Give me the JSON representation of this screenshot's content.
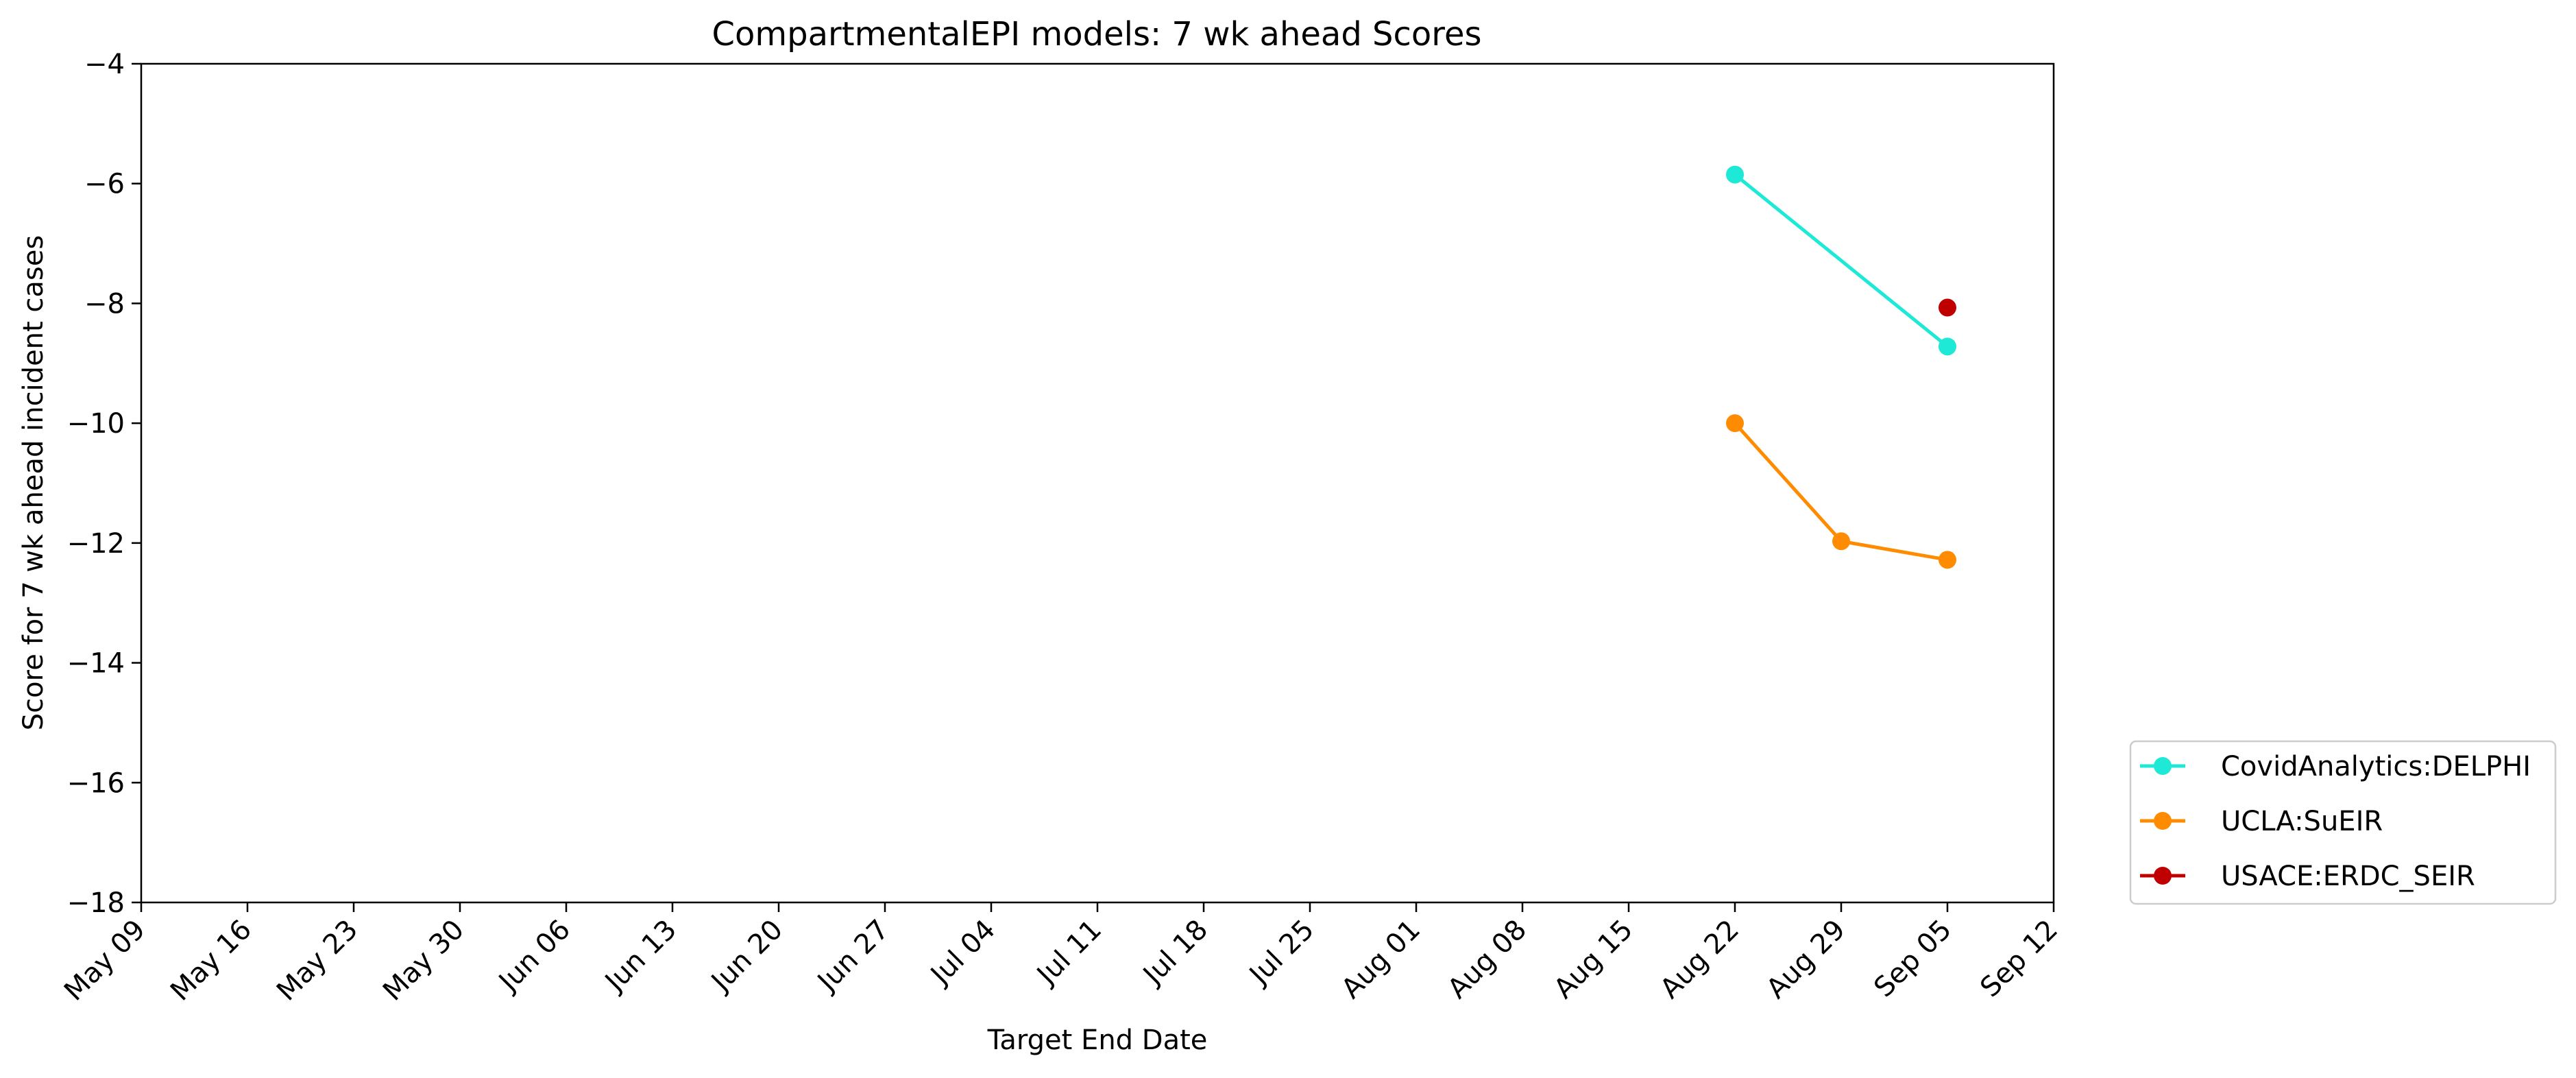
{
  "chart_data": {
    "type": "line",
    "title": "CompartmentalEPI models: 7 wk ahead Scores",
    "xlabel": "Target End Date",
    "ylabel": "Score for 7 wk ahead incident cases",
    "ylim": [
      -18,
      -4
    ],
    "yticks": [
      "−18",
      "−16",
      "−14",
      "−12",
      "−10",
      "−8",
      "−6",
      "−4"
    ],
    "xlim": [
      "2020-05-09",
      "2020-09-12"
    ],
    "xticks": [
      {
        "date": "2020-05-09",
        "label": "May 09"
      },
      {
        "date": "2020-05-16",
        "label": "May 16"
      },
      {
        "date": "2020-05-23",
        "label": "May 23"
      },
      {
        "date": "2020-05-30",
        "label": "May 30"
      },
      {
        "date": "2020-06-06",
        "label": "Jun 06"
      },
      {
        "date": "2020-06-13",
        "label": "Jun 13"
      },
      {
        "date": "2020-06-20",
        "label": "Jun 20"
      },
      {
        "date": "2020-06-27",
        "label": "Jun 27"
      },
      {
        "date": "2020-07-04",
        "label": "Jul 04"
      },
      {
        "date": "2020-07-11",
        "label": "Jul 11"
      },
      {
        "date": "2020-07-18",
        "label": "Jul 18"
      },
      {
        "date": "2020-07-25",
        "label": "Jul 25"
      },
      {
        "date": "2020-08-01",
        "label": "Aug 01"
      },
      {
        "date": "2020-08-08",
        "label": "Aug 08"
      },
      {
        "date": "2020-08-15",
        "label": "Aug 15"
      },
      {
        "date": "2020-08-22",
        "label": "Aug 22"
      },
      {
        "date": "2020-08-29",
        "label": "Aug 29"
      },
      {
        "date": "2020-09-05",
        "label": "Sep 05"
      },
      {
        "date": "2020-09-12",
        "label": "Sep 12"
      }
    ],
    "grid": false,
    "legend_position": "outside-right-bottom",
    "series": [
      {
        "name": "CovidAnalytics:DELPHI",
        "color": "#1de9d6",
        "points": [
          {
            "x": "2020-08-22",
            "y": -5.85
          },
          {
            "x": "2020-09-05",
            "y": -8.72
          }
        ]
      },
      {
        "name": "UCLA:SuEIR",
        "color": "#ff8c00",
        "points": [
          {
            "x": "2020-08-22",
            "y": -10.0
          },
          {
            "x": "2020-08-29",
            "y": -11.97
          },
          {
            "x": "2020-09-05",
            "y": -12.28
          }
        ]
      },
      {
        "name": "USACE:ERDC_SEIR",
        "color": "#c00000",
        "points": [
          {
            "x": "2020-09-05",
            "y": -8.07
          }
        ]
      }
    ]
  }
}
